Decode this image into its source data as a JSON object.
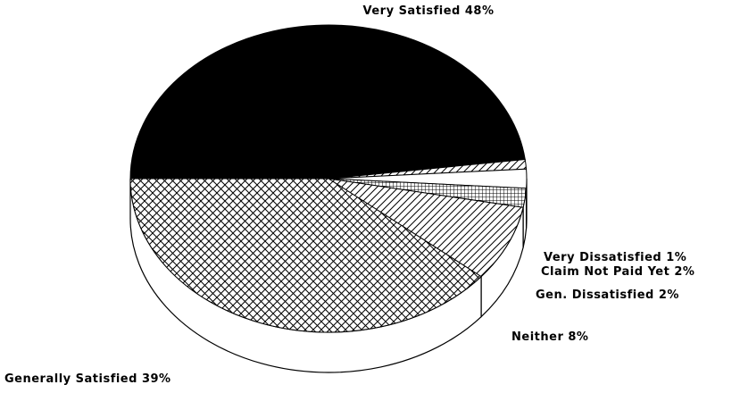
{
  "chart_data": {
    "type": "pie3d",
    "categories": [
      "Very Satisfied",
      "Very Dissatisfied",
      "Claim Not Paid Yet",
      "Gen. Dissatisfied",
      "Neither",
      "Generally Satisfied"
    ],
    "values": [
      48,
      1,
      2,
      2,
      8,
      39
    ],
    "value_labels": [
      "48%",
      "1%",
      "2%",
      "2%",
      "8%",
      "39%"
    ],
    "patterns": [
      "solid",
      "diagonal",
      "white",
      "grid",
      "diagonal",
      "crosshatch"
    ]
  }
}
